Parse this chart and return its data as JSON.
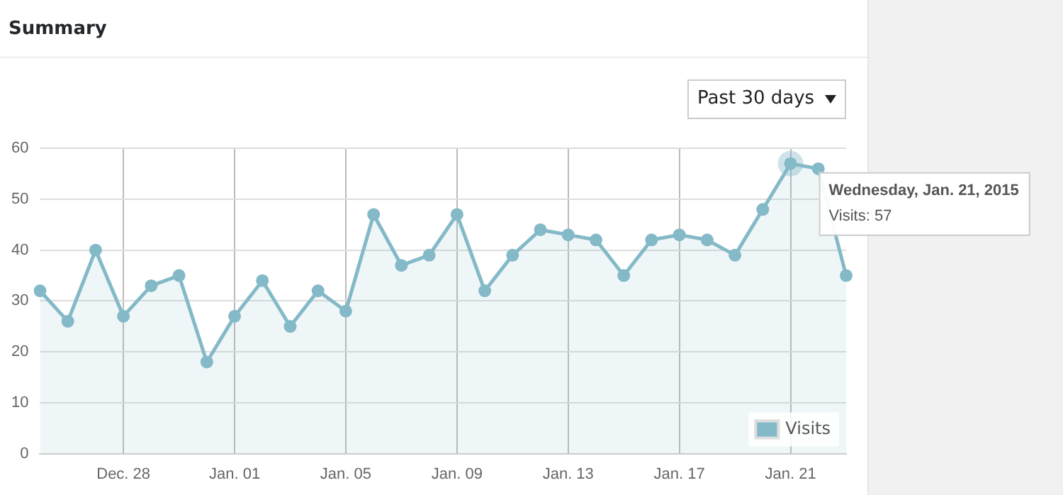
{
  "chart_data": {
    "type": "area",
    "title": "Summary",
    "categories": [
      null,
      null,
      null,
      "Dec. 28",
      null,
      null,
      null,
      "Jan. 01",
      null,
      null,
      null,
      "Jan. 05",
      null,
      null,
      null,
      "Jan. 09",
      null,
      null,
      null,
      "Jan. 13",
      null,
      null,
      null,
      "Jan. 17",
      null,
      null,
      null,
      "Jan. 21",
      null,
      null
    ],
    "series": [
      {
        "name": "Visits",
        "color": "#84b9c7",
        "values": [
          32,
          26,
          40,
          27,
          33,
          35,
          18,
          27,
          34,
          25,
          32,
          28,
          47,
          37,
          39,
          47,
          32,
          39,
          44,
          43,
          42,
          35,
          42,
          43,
          42,
          39,
          48,
          57,
          56,
          35
        ]
      }
    ],
    "ylim": [
      0,
      60
    ],
    "yticks": [
      0,
      10,
      20,
      30,
      40,
      50,
      60
    ],
    "grid": true,
    "legend": "bottom right",
    "marker": "circle",
    "annotations": [
      "Past 30 days",
      {
        "text": "Wednesday, Jan. 21, 2015\nVisits: 57",
        "x": "Jan. 21",
        "y": 57
      }
    ]
  }
}
